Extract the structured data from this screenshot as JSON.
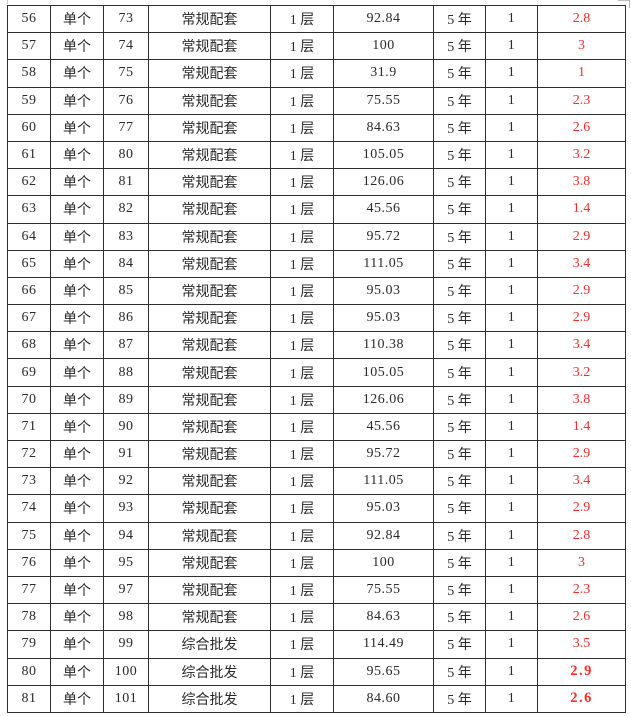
{
  "colors": {
    "value_red": "#fb2b2b",
    "text": "#2a2a2a",
    "border": "#2e2e2e"
  },
  "table": {
    "rows": [
      {
        "no": "56",
        "type": "单个",
        "num": "73",
        "category": "常规配套",
        "floor": "1 层",
        "area": "92.84",
        "term": "5 年",
        "qty": "1",
        "value": "2.8",
        "bold": false
      },
      {
        "no": "57",
        "type": "单个",
        "num": "74",
        "category": "常规配套",
        "floor": "1 层",
        "area": "100",
        "term": "5 年",
        "qty": "1",
        "value": "3",
        "bold": false
      },
      {
        "no": "58",
        "type": "单个",
        "num": "75",
        "category": "常规配套",
        "floor": "1 层",
        "area": "31.9",
        "term": "5 年",
        "qty": "1",
        "value": "1",
        "bold": false
      },
      {
        "no": "59",
        "type": "单个",
        "num": "76",
        "category": "常规配套",
        "floor": "1 层",
        "area": "75.55",
        "term": "5 年",
        "qty": "1",
        "value": "2.3",
        "bold": false
      },
      {
        "no": "60",
        "type": "单个",
        "num": "77",
        "category": "常规配套",
        "floor": "1 层",
        "area": "84.63",
        "term": "5 年",
        "qty": "1",
        "value": "2.6",
        "bold": false
      },
      {
        "no": "61",
        "type": "单个",
        "num": "80",
        "category": "常规配套",
        "floor": "1 层",
        "area": "105.05",
        "term": "5 年",
        "qty": "1",
        "value": "3.2",
        "bold": false
      },
      {
        "no": "62",
        "type": "单个",
        "num": "81",
        "category": "常规配套",
        "floor": "1 层",
        "area": "126.06",
        "term": "5 年",
        "qty": "1",
        "value": "3.8",
        "bold": false
      },
      {
        "no": "63",
        "type": "单个",
        "num": "82",
        "category": "常规配套",
        "floor": "1 层",
        "area": "45.56",
        "term": "5 年",
        "qty": "1",
        "value": "1.4",
        "bold": false
      },
      {
        "no": "64",
        "type": "单个",
        "num": "83",
        "category": "常规配套",
        "floor": "1 层",
        "area": "95.72",
        "term": "5 年",
        "qty": "1",
        "value": "2.9",
        "bold": false
      },
      {
        "no": "65",
        "type": "单个",
        "num": "84",
        "category": "常规配套",
        "floor": "1 层",
        "area": "111.05",
        "term": "5 年",
        "qty": "1",
        "value": "3.4",
        "bold": false
      },
      {
        "no": "66",
        "type": "单个",
        "num": "85",
        "category": "常规配套",
        "floor": "1 层",
        "area": "95.03",
        "term": "5 年",
        "qty": "1",
        "value": "2.9",
        "bold": false
      },
      {
        "no": "67",
        "type": "单个",
        "num": "86",
        "category": "常规配套",
        "floor": "1 层",
        "area": "95.03",
        "term": "5 年",
        "qty": "1",
        "value": "2.9",
        "bold": false
      },
      {
        "no": "68",
        "type": "单个",
        "num": "87",
        "category": "常规配套",
        "floor": "1 层",
        "area": "110.38",
        "term": "5 年",
        "qty": "1",
        "value": "3.4",
        "bold": false
      },
      {
        "no": "69",
        "type": "单个",
        "num": "88",
        "category": "常规配套",
        "floor": "1 层",
        "area": "105.05",
        "term": "5 年",
        "qty": "1",
        "value": "3.2",
        "bold": false
      },
      {
        "no": "70",
        "type": "单个",
        "num": "89",
        "category": "常规配套",
        "floor": "1 层",
        "area": "126.06",
        "term": "5 年",
        "qty": "1",
        "value": "3.8",
        "bold": false
      },
      {
        "no": "71",
        "type": "单个",
        "num": "90",
        "category": "常规配套",
        "floor": "1 层",
        "area": "45.56",
        "term": "5 年",
        "qty": "1",
        "value": "1.4",
        "bold": false
      },
      {
        "no": "72",
        "type": "单个",
        "num": "91",
        "category": "常规配套",
        "floor": "1 层",
        "area": "95.72",
        "term": "5 年",
        "qty": "1",
        "value": "2.9",
        "bold": false
      },
      {
        "no": "73",
        "type": "单个",
        "num": "92",
        "category": "常规配套",
        "floor": "1 层",
        "area": "111.05",
        "term": "5 年",
        "qty": "1",
        "value": "3.4",
        "bold": false
      },
      {
        "no": "74",
        "type": "单个",
        "num": "93",
        "category": "常规配套",
        "floor": "1 层",
        "area": "95.03",
        "term": "5 年",
        "qty": "1",
        "value": "2.9",
        "bold": false
      },
      {
        "no": "75",
        "type": "单个",
        "num": "94",
        "category": "常规配套",
        "floor": "1 层",
        "area": "92.84",
        "term": "5 年",
        "qty": "1",
        "value": "2.8",
        "bold": false
      },
      {
        "no": "76",
        "type": "单个",
        "num": "95",
        "category": "常规配套",
        "floor": "1 层",
        "area": "100",
        "term": "5 年",
        "qty": "1",
        "value": "3",
        "bold": false
      },
      {
        "no": "77",
        "type": "单个",
        "num": "97",
        "category": "常规配套",
        "floor": "1 层",
        "area": "75.55",
        "term": "5 年",
        "qty": "1",
        "value": "2.3",
        "bold": false
      },
      {
        "no": "78",
        "type": "单个",
        "num": "98",
        "category": "常规配套",
        "floor": "1 层",
        "area": "84.63",
        "term": "5 年",
        "qty": "1",
        "value": "2.6",
        "bold": false
      },
      {
        "no": "79",
        "type": "单个",
        "num": "99",
        "category": "综合批发",
        "floor": "1 层",
        "area": "114.49",
        "term": "5 年",
        "qty": "1",
        "value": "3.5",
        "bold": false
      },
      {
        "no": "80",
        "type": "单个",
        "num": "100",
        "category": "综合批发",
        "floor": "1 层",
        "area": "95.65",
        "term": "5 年",
        "qty": "1",
        "value": "2.9",
        "bold": true
      },
      {
        "no": "81",
        "type": "单个",
        "num": "101",
        "category": "综合批发",
        "floor": "1 层",
        "area": "84.60",
        "term": "5 年",
        "qty": "1",
        "value": "2.6",
        "bold": true
      }
    ]
  }
}
